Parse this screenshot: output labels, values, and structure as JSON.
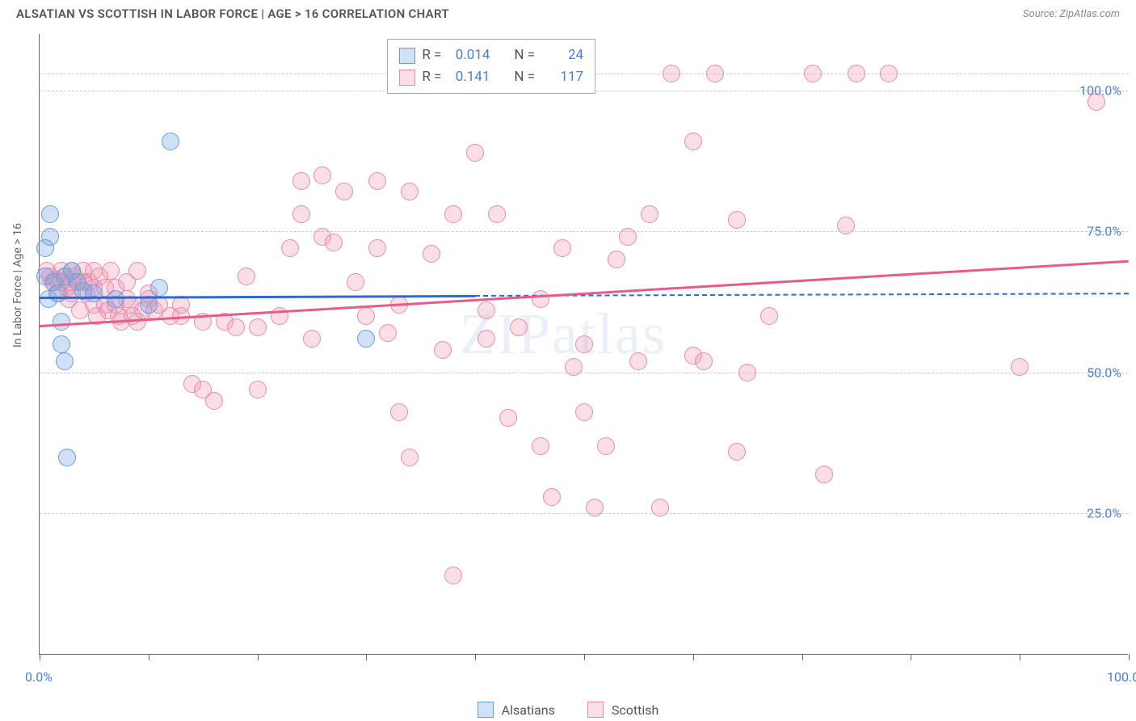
{
  "title": "ALSATIAN VS SCOTTISH IN LABOR FORCE | AGE > 16 CORRELATION CHART",
  "source_label": "Source: ZipAtlas.com",
  "y_axis_label": "In Labor Force | Age > 16",
  "watermark_text": "ZIPatlas",
  "chart": {
    "type": "scatter",
    "background_color": "#ffffff",
    "grid_color": "#cccccc",
    "axis_color": "#666666",
    "tick_label_color": "#4a7fd6",
    "tick_fontsize": 16,
    "xlim": [
      0,
      100
    ],
    "ylim": [
      0,
      110
    ],
    "y_ticks": [
      25,
      50,
      75,
      100
    ],
    "y_tick_labels": [
      "25.0%",
      "50.0%",
      "75.0%",
      "100.0%"
    ],
    "x_ticks": [
      0,
      10,
      20,
      30,
      40,
      50,
      60,
      70,
      80,
      90,
      100
    ],
    "x_tick_labels_shown": {
      "0": "0.0%",
      "100": "100.0%"
    },
    "point_radius": 11,
    "point_stroke_width": 1.5,
    "series": [
      {
        "name": "Alsatians",
        "fill_color": "rgba(120,165,225,0.35)",
        "stroke_color": "#6b9bd8",
        "trend_color": "#2e6bd0",
        "R": "0.014",
        "N": "24",
        "trend": {
          "x1": 0,
          "y1": 63.5,
          "x2_solid": 40,
          "y2_solid": 63.8,
          "x2_dash": 100,
          "y2_dash": 64.2
        },
        "points": [
          [
            0.5,
            67
          ],
          [
            0.5,
            72
          ],
          [
            0.8,
            63
          ],
          [
            1,
            78
          ],
          [
            1,
            74
          ],
          [
            1.3,
            66
          ],
          [
            1.6,
            64
          ],
          [
            2,
            55
          ],
          [
            2,
            59
          ],
          [
            2.3,
            52
          ],
          [
            2.3,
            67
          ],
          [
            2.5,
            35
          ],
          [
            3,
            68
          ],
          [
            3.5,
            66
          ],
          [
            4,
            64.5
          ],
          [
            5,
            64
          ],
          [
            7,
            63
          ],
          [
            10,
            62
          ],
          [
            11,
            65
          ],
          [
            12,
            91
          ],
          [
            30,
            56
          ]
        ]
      },
      {
        "name": "Scottish",
        "fill_color": "rgba(240,145,175,0.30)",
        "stroke_color": "#e78bab",
        "trend_color": "#e85a8a",
        "R": "0.141",
        "N": "117",
        "trend": {
          "x1": 0,
          "y1": 58.5,
          "x2_solid": 100,
          "y2_solid": 70,
          "x2_dash": 100,
          "y2_dash": 70
        },
        "points": [
          [
            0.7,
            68
          ],
          [
            1,
            67
          ],
          [
            1.2,
            66
          ],
          [
            1.5,
            66.5
          ],
          [
            1.8,
            64
          ],
          [
            2,
            66
          ],
          [
            2,
            68
          ],
          [
            2.3,
            67
          ],
          [
            2.5,
            65
          ],
          [
            2.7,
            63
          ],
          [
            3,
            68
          ],
          [
            3,
            66
          ],
          [
            3,
            64
          ],
          [
            3.2,
            67
          ],
          [
            3.5,
            66
          ],
          [
            3.7,
            61
          ],
          [
            4,
            68
          ],
          [
            4,
            66
          ],
          [
            4.3,
            64
          ],
          [
            4.5,
            66
          ],
          [
            5,
            68
          ],
          [
            5,
            65
          ],
          [
            5,
            62
          ],
          [
            5.3,
            60
          ],
          [
            5.5,
            67
          ],
          [
            6,
            65
          ],
          [
            6,
            62
          ],
          [
            6.3,
            61
          ],
          [
            6.5,
            68
          ],
          [
            7,
            65
          ],
          [
            7,
            62
          ],
          [
            7.3,
            60
          ],
          [
            7.5,
            59
          ],
          [
            8,
            66
          ],
          [
            8,
            63
          ],
          [
            8.3,
            62
          ],
          [
            8.5,
            60
          ],
          [
            9,
            68
          ],
          [
            9,
            59
          ],
          [
            9.5,
            61
          ],
          [
            10,
            63
          ],
          [
            10,
            64
          ],
          [
            10.5,
            61
          ],
          [
            11,
            62
          ],
          [
            12,
            60
          ],
          [
            13,
            62
          ],
          [
            13,
            60
          ],
          [
            14,
            48
          ],
          [
            15,
            59
          ],
          [
            15,
            47
          ],
          [
            16,
            45
          ],
          [
            17,
            59
          ],
          [
            18,
            58
          ],
          [
            19,
            67
          ],
          [
            20,
            47
          ],
          [
            20,
            58
          ],
          [
            22,
            60
          ],
          [
            23,
            72
          ],
          [
            24,
            78
          ],
          [
            24,
            84
          ],
          [
            25,
            56
          ],
          [
            26,
            85
          ],
          [
            26,
            74
          ],
          [
            27,
            73
          ],
          [
            28,
            82
          ],
          [
            29,
            66
          ],
          [
            30,
            60
          ],
          [
            31,
            72
          ],
          [
            31,
            84
          ],
          [
            32,
            57
          ],
          [
            33,
            62
          ],
          [
            33,
            43
          ],
          [
            34,
            82
          ],
          [
            34,
            35
          ],
          [
            36,
            71
          ],
          [
            37,
            54
          ],
          [
            38,
            78
          ],
          [
            38,
            14
          ],
          [
            40,
            89
          ],
          [
            41,
            56
          ],
          [
            41,
            61
          ],
          [
            42,
            103
          ],
          [
            42,
            78
          ],
          [
            43,
            42
          ],
          [
            44,
            58
          ],
          [
            46,
            63
          ],
          [
            46,
            37
          ],
          [
            47,
            28
          ],
          [
            48,
            72
          ],
          [
            49,
            51
          ],
          [
            50,
            43
          ],
          [
            50,
            55
          ],
          [
            51,
            26
          ],
          [
            52,
            37
          ],
          [
            53,
            70
          ],
          [
            54,
            74
          ],
          [
            55,
            52
          ],
          [
            56,
            78
          ],
          [
            57,
            26
          ],
          [
            58,
            103
          ],
          [
            60,
            91
          ],
          [
            60,
            53
          ],
          [
            61,
            52
          ],
          [
            62,
            103
          ],
          [
            64,
            36
          ],
          [
            64,
            77
          ],
          [
            65,
            50
          ],
          [
            67,
            60
          ],
          [
            71,
            103
          ],
          [
            72,
            32
          ],
          [
            74,
            76
          ],
          [
            75,
            103
          ],
          [
            78,
            103
          ],
          [
            90,
            51
          ],
          [
            97,
            98
          ]
        ]
      }
    ]
  },
  "stats_legend": {
    "R_label": "R =",
    "N_label": "N ="
  },
  "bottom_legend_labels": [
    "Alsatians",
    "Scottish"
  ]
}
